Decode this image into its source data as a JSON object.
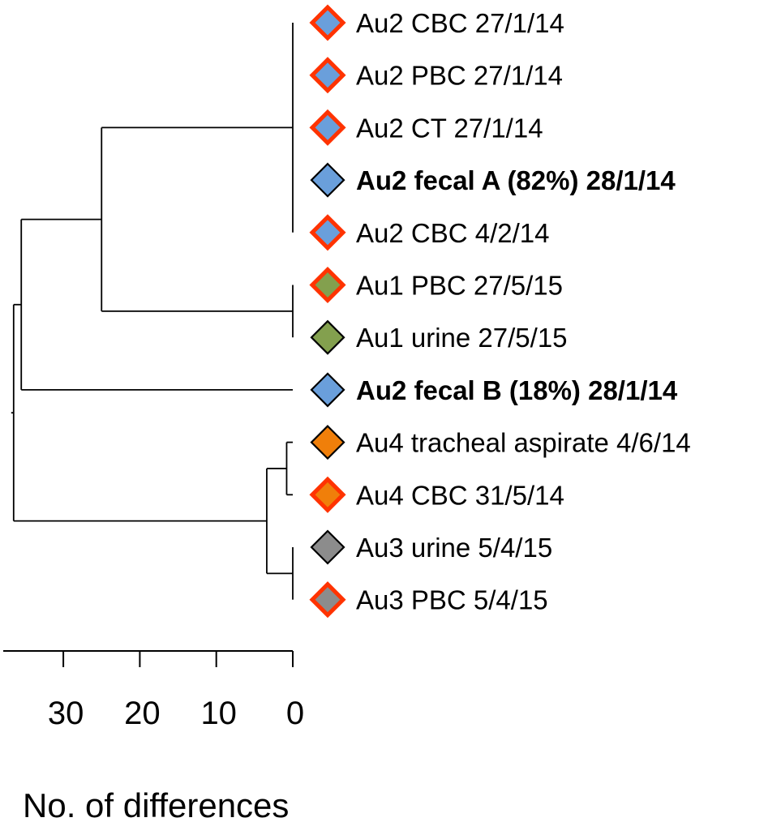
{
  "colors": {
    "au1": "#83a04e",
    "au2": "#6a9fdb",
    "au3": "#8c8c8c",
    "au4": "#f07f0a",
    "highlight_border": "#ff3300",
    "normal_border": "#000000"
  },
  "tips": [
    {
      "label": "Au2 CBC 27/1/14",
      "color_key": "au2",
      "red_border": true,
      "bold": false
    },
    {
      "label": "Au2 PBC 27/1/14",
      "color_key": "au2",
      "red_border": true,
      "bold": false
    },
    {
      "label": "Au2 CT 27/1/14",
      "color_key": "au2",
      "red_border": true,
      "bold": false
    },
    {
      "label": "Au2 fecal A (82%) 28/1/14",
      "color_key": "au2",
      "red_border": false,
      "bold": true
    },
    {
      "label": "Au2 CBC 4/2/14",
      "color_key": "au2",
      "red_border": true,
      "bold": false
    },
    {
      "label": "Au1 PBC 27/5/15",
      "color_key": "au1",
      "red_border": true,
      "bold": false
    },
    {
      "label": "Au1 urine 27/5/15",
      "color_key": "au1",
      "red_border": false,
      "bold": false
    },
    {
      "label": "Au2 fecal B (18%) 28/1/14",
      "color_key": "au2",
      "red_border": false,
      "bold": true
    },
    {
      "label": "Au4 tracheal aspirate 4/6/14",
      "color_key": "au4",
      "red_border": false,
      "bold": false
    },
    {
      "label": "Au4 CBC 31/5/14",
      "color_key": "au4",
      "red_border": true,
      "bold": false
    },
    {
      "label": "Au3 urine 5/4/15",
      "color_key": "au3",
      "red_border": false,
      "bold": false
    },
    {
      "label": "Au3 PBC 5/4/15",
      "color_key": "au3",
      "red_border": true,
      "bold": false
    }
  ],
  "tree": {
    "nodes": [
      {
        "id": "au2_clade",
        "distance": 0,
        "children": [
          0,
          1,
          2,
          3,
          4
        ]
      },
      {
        "id": "au1_clade",
        "distance": 0,
        "children": [
          5,
          6
        ]
      },
      {
        "id": "au2_au1",
        "distance": 25,
        "children": [
          "au2_clade",
          "au1_clade"
        ]
      },
      {
        "id": "with_fecalB",
        "distance": 35.5,
        "children": [
          "au2_au1",
          7
        ]
      },
      {
        "id": "au4_clade",
        "distance": 0.8,
        "children": [
          8,
          9
        ]
      },
      {
        "id": "au3_clade",
        "distance": 0,
        "children": [
          10,
          11
        ]
      },
      {
        "id": "au4_au3",
        "distance": 3.4,
        "children": [
          "au4_clade",
          "au3_clade"
        ]
      },
      {
        "id": "root",
        "distance": 36.5,
        "children": [
          "with_fecalB",
          "au4_au3"
        ]
      }
    ]
  },
  "axis": {
    "title": "No. of differences",
    "ticks": [
      30,
      20,
      10,
      0
    ],
    "range": [
      0,
      38
    ]
  }
}
